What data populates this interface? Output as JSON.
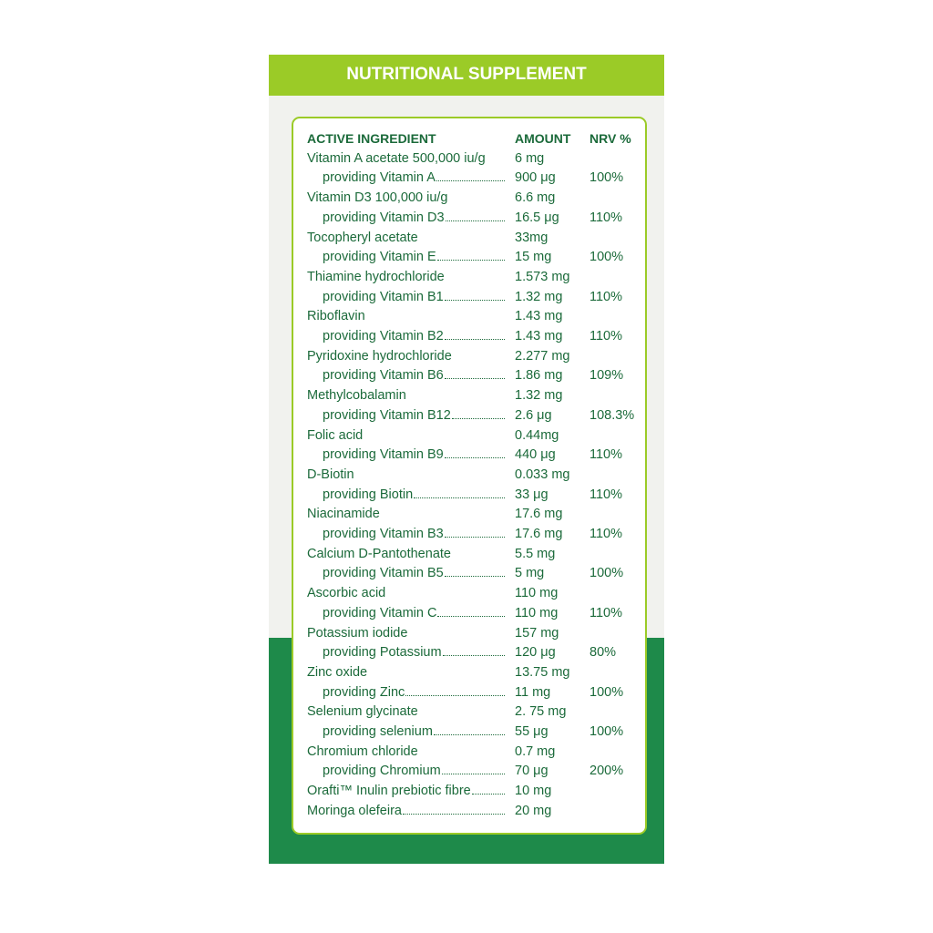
{
  "header": {
    "title": "NUTRITIONAL SUPPLEMENT"
  },
  "table": {
    "headers": [
      "ACTIVE INGREDIENT",
      "AMOUNT",
      "NRV %"
    ],
    "rows": [
      {
        "ingredient": "Vitamin A acetate 500,000 iu/g",
        "amount": "6 mg",
        "provides": {
          "name": "providing Vitamin A",
          "amount": "900 μg",
          "nrv": "100%"
        }
      },
      {
        "ingredient": "Vitamin D3 100,000 iu/g",
        "amount": "6.6 mg",
        "provides": {
          "name": "providing Vitamin D3",
          "amount": "16.5 μg",
          "nrv": "110%"
        }
      },
      {
        "ingredient": "Tocopheryl acetate",
        "amount": "33mg",
        "provides": {
          "name": "providing Vitamin E",
          "amount": "15 mg",
          "nrv": "100%"
        }
      },
      {
        "ingredient": "Thiamine hydrochloride",
        "amount": "1.573 mg",
        "provides": {
          "name": "providing Vitamin B1",
          "amount": "1.32 mg",
          "nrv": "110%"
        }
      },
      {
        "ingredient": "Riboflavin",
        "amount": "1.43 mg",
        "provides": {
          "name": "providing Vitamin B2",
          "amount": "1.43 mg",
          "nrv": "110%"
        }
      },
      {
        "ingredient": "Pyridoxine hydrochloride",
        "amount": "2.277 mg",
        "provides": {
          "name": "providing Vitamin B6",
          "amount": "1.86 mg",
          "nrv": "109%"
        }
      },
      {
        "ingredient": "Methylcobalamin",
        "amount": "1.32 mg",
        "provides": {
          "name": "providing Vitamin B12",
          "amount": "2.6 μg",
          "nrv": "108.3%"
        }
      },
      {
        "ingredient": "Folic acid",
        "amount": "0.44mg",
        "provides": {
          "name": "providing Vitamin B9",
          "amount": "440 μg",
          "nrv": "110%"
        }
      },
      {
        "ingredient": "D-Biotin",
        "amount": "0.033 mg",
        "provides": {
          "name": "providing Biotin",
          "amount": "33 μg",
          "nrv": "110%"
        }
      },
      {
        "ingredient": "Niacinamide",
        "amount": "17.6 mg",
        "provides": {
          "name": "providing Vitamin B3",
          "amount": "17.6 mg",
          "nrv": "110%"
        }
      },
      {
        "ingredient": "Calcium D-Pantothenate",
        "amount": "5.5 mg",
        "provides": {
          "name": "providing Vitamin B5",
          "amount": "5 mg",
          "nrv": "100%"
        }
      },
      {
        "ingredient": "Ascorbic acid",
        "amount": "110 mg",
        "provides": {
          "name": "providing Vitamin C",
          "amount": "110 mg",
          "nrv": "110%"
        }
      },
      {
        "ingredient": "Potassium iodide",
        "amount": "157 mg",
        "provides": {
          "name": "providing Potassium",
          "amount": "120 μg",
          "nrv": "80%"
        }
      },
      {
        "ingredient": "Zinc oxide",
        "amount": "13.75 mg",
        "provides": {
          "name": "providing Zinc",
          "amount": "11 mg",
          "nrv": "100%"
        }
      },
      {
        "ingredient": "Selenium glycinate",
        "amount": "2. 75 mg",
        "provides": {
          "name": "providing selenium",
          "amount": "55 μg",
          "nrv": "100%"
        }
      },
      {
        "ingredient": "Chromium chloride",
        "amount": "0.7 mg",
        "provides": {
          "name": "providing Chromium",
          "amount": "70 μg",
          "nrv": "200%"
        }
      },
      {
        "ingredient": "Orafti™ Inulin prebiotic fibre",
        "amount": "10 mg"
      },
      {
        "ingredient": "Moringa olefeira",
        "amount": "20 mg"
      }
    ]
  }
}
